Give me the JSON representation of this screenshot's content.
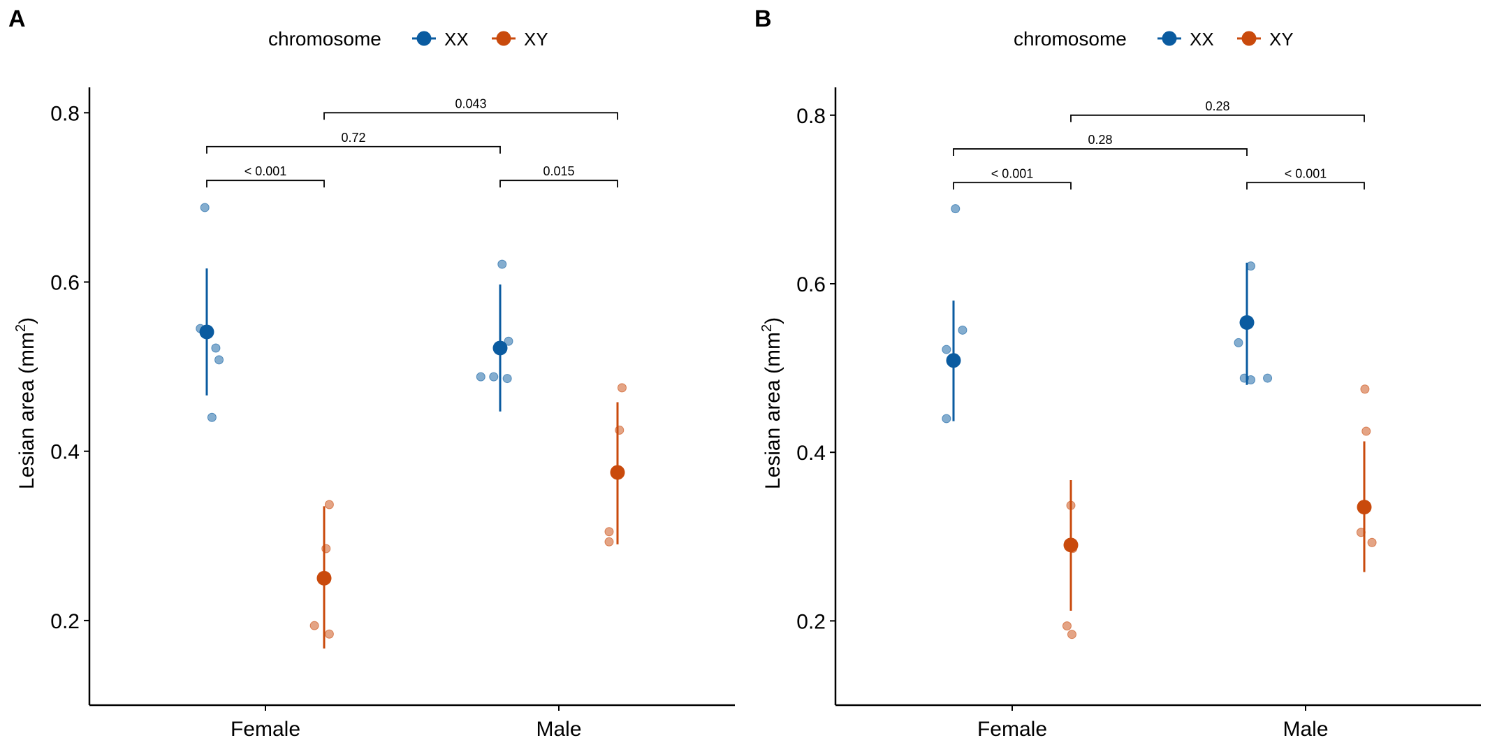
{
  "legend": {
    "title": "chromosome",
    "items": [
      {
        "label": "XX",
        "color": "#0A5BA0"
      },
      {
        "label": "XY",
        "color": "#C94A0C"
      }
    ]
  },
  "chart_data": [
    {
      "panel": "A",
      "type": "scatter",
      "xlabel": "",
      "ylabel": "Lesian area (mm²)",
      "ylabel_parts": {
        "base": "Lesian area (mm",
        "sup": "2",
        "end": ")"
      },
      "categories": [
        "Female",
        "Male"
      ],
      "ylim": [
        0.1,
        0.83
      ],
      "yticks": [
        0.2,
        0.4,
        0.6,
        0.8
      ],
      "ytick_labels": [
        "0.2",
        "0.4",
        "0.6",
        "0.8"
      ],
      "series": [
        {
          "name": "XX",
          "summary": [
            {
              "category": "Female",
              "mean": 0.541,
              "low": 0.466,
              "high": 0.616
            },
            {
              "category": "Male",
              "mean": 0.522,
              "low": 0.447,
              "high": 0.597
            }
          ],
          "points": [
            {
              "category": "Female",
              "jitter": -0.05,
              "y": 0.545
            },
            {
              "category": "Female",
              "jitter": -0.015,
              "y": 0.688
            },
            {
              "category": "Female",
              "jitter": 0.04,
              "y": 0.44
            },
            {
              "category": "Female",
              "jitter": 0.07,
              "y": 0.522
            },
            {
              "category": "Female",
              "jitter": 0.095,
              "y": 0.508
            },
            {
              "category": "Male",
              "jitter": -0.15,
              "y": 0.488
            },
            {
              "category": "Male",
              "jitter": -0.05,
              "y": 0.488
            },
            {
              "category": "Male",
              "jitter": 0.015,
              "y": 0.621
            },
            {
              "category": "Male",
              "jitter": 0.055,
              "y": 0.486
            },
            {
              "category": "Male",
              "jitter": 0.065,
              "y": 0.53
            }
          ]
        },
        {
          "name": "XY",
          "summary": [
            {
              "category": "Female",
              "mean": 0.25,
              "low": 0.167,
              "high": 0.335
            },
            {
              "category": "Male",
              "mean": 0.375,
              "low": 0.29,
              "high": 0.458
            }
          ],
          "points": [
            {
              "category": "Female",
              "jitter": -0.075,
              "y": 0.194
            },
            {
              "category": "Female",
              "jitter": 0.015,
              "y": 0.285
            },
            {
              "category": "Female",
              "jitter": 0.04,
              "y": 0.337
            },
            {
              "category": "Female",
              "jitter": 0.04,
              "y": 0.184
            },
            {
              "category": "Male",
              "jitter": -0.065,
              "y": 0.305
            },
            {
              "category": "Male",
              "jitter": -0.065,
              "y": 0.293
            },
            {
              "category": "Male",
              "jitter": 0.015,
              "y": 0.425
            },
            {
              "category": "Male",
              "jitter": 0.035,
              "y": 0.475
            }
          ]
        }
      ],
      "brackets": [
        {
          "from": "Female-XX",
          "to": "Female-XY",
          "y": 0.72,
          "label": "< 0.001"
        },
        {
          "from": "Male-XX",
          "to": "Male-XY",
          "y": 0.72,
          "label": "0.015"
        },
        {
          "from": "Female-XX",
          "to": "Male-XX",
          "y": 0.76,
          "label": "0.72"
        },
        {
          "from": "Female-XY",
          "to": "Male-XY",
          "y": 0.8,
          "label": "0.043"
        }
      ]
    },
    {
      "panel": "B",
      "type": "scatter",
      "xlabel": "",
      "ylabel": "Lesian area (mm²)",
      "ylabel_parts": {
        "base": "Lesian area (mm",
        "sup": "2",
        "end": ")"
      },
      "categories": [
        "Female",
        "Male"
      ],
      "ylim": [
        0.1,
        0.833
      ],
      "yticks": [
        0.2,
        0.4,
        0.6,
        0.8
      ],
      "ytick_labels": [
        "0.2",
        "0.4",
        "0.6",
        "0.8"
      ],
      "series": [
        {
          "name": "XX",
          "summary": [
            {
              "category": "Female",
              "mean": 0.509,
              "low": 0.437,
              "high": 0.58
            },
            {
              "category": "Male",
              "mean": 0.554,
              "low": 0.48,
              "high": 0.625
            }
          ],
          "points": [
            {
              "category": "Female",
              "jitter": -0.055,
              "y": 0.44
            },
            {
              "category": "Female",
              "jitter": -0.055,
              "y": 0.522
            },
            {
              "category": "Female",
              "jitter": 0.015,
              "y": 0.689
            },
            {
              "category": "Female",
              "jitter": 0.07,
              "y": 0.545
            },
            {
              "category": "Male",
              "jitter": -0.065,
              "y": 0.53
            },
            {
              "category": "Male",
              "jitter": -0.02,
              "y": 0.488
            },
            {
              "category": "Male",
              "jitter": 0.03,
              "y": 0.486
            },
            {
              "category": "Male",
              "jitter": 0.03,
              "y": 0.621
            },
            {
              "category": "Male",
              "jitter": 0.16,
              "y": 0.488
            }
          ]
        },
        {
          "name": "XY",
          "summary": [
            {
              "category": "Female",
              "mean": 0.29,
              "low": 0.212,
              "high": 0.367
            },
            {
              "category": "Male",
              "mean": 0.335,
              "low": 0.258,
              "high": 0.413
            }
          ],
          "points": [
            {
              "category": "Female",
              "jitter": -0.03,
              "y": 0.194
            },
            {
              "category": "Female",
              "jitter": 0.0,
              "y": 0.337
            },
            {
              "category": "Female",
              "jitter": 0.008,
              "y": 0.184
            },
            {
              "category": "Female",
              "jitter": 0.015,
              "y": 0.286
            },
            {
              "category": "Male",
              "jitter": -0.025,
              "y": 0.305
            },
            {
              "category": "Male",
              "jitter": 0.005,
              "y": 0.475
            },
            {
              "category": "Male",
              "jitter": 0.015,
              "y": 0.425
            },
            {
              "category": "Male",
              "jitter": 0.06,
              "y": 0.293
            }
          ]
        }
      ],
      "brackets": [
        {
          "from": "Female-XX",
          "to": "Female-XY",
          "y": 0.72,
          "label": "< 0.001"
        },
        {
          "from": "Male-XX",
          "to": "Male-XY",
          "y": 0.72,
          "label": "< 0.001"
        },
        {
          "from": "Female-XX",
          "to": "Male-XX",
          "y": 0.76,
          "label": "0.28"
        },
        {
          "from": "Female-XY",
          "to": "Male-XY",
          "y": 0.8,
          "label": "0.28"
        }
      ]
    }
  ]
}
